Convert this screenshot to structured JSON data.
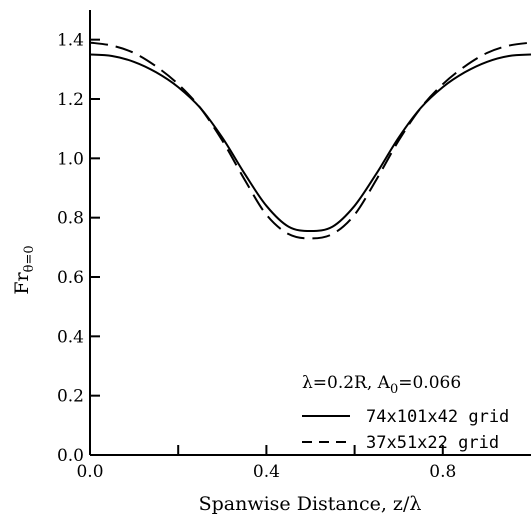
{
  "chart_data": {
    "type": "line",
    "xlabel": "Spanwise Distance, z/λ",
    "ylabel_main": "Fr",
    "ylabel_sub": "θ=0",
    "xlim": [
      0.0,
      1.0
    ],
    "ylim": [
      0.0,
      1.5
    ],
    "x_ticks": [
      0.0,
      0.4,
      0.8
    ],
    "x_tick_labels": [
      "0.0",
      "0.4",
      "0.8"
    ],
    "x_minor_ticks": [
      0.2,
      0.6
    ],
    "y_ticks": [
      0.0,
      0.2,
      0.4,
      0.6,
      0.8,
      1.0,
      1.2,
      1.4
    ],
    "y_tick_labels": [
      "0.0",
      "0.2",
      "0.4",
      "0.6",
      "0.8",
      "1.0",
      "1.2",
      "1.4"
    ],
    "annotation_main": "λ=0.2R, A",
    "annotation_sub": "0",
    "annotation_tail": "=0.066",
    "grid": false,
    "legend_position": "lower-right",
    "series": [
      {
        "name": "74x101x42 grid",
        "style": "solid",
        "x": [
          0.0,
          0.05,
          0.1,
          0.15,
          0.2,
          0.25,
          0.3,
          0.35,
          0.4,
          0.45,
          0.5,
          0.55,
          0.6,
          0.65,
          0.7,
          0.75,
          0.8,
          0.85,
          0.9,
          0.95,
          1.0
        ],
        "y": [
          1.35,
          1.345,
          1.325,
          1.29,
          1.24,
          1.17,
          1.07,
          0.95,
          0.84,
          0.77,
          0.755,
          0.77,
          0.84,
          0.95,
          1.07,
          1.17,
          1.24,
          1.29,
          1.325,
          1.345,
          1.35
        ]
      },
      {
        "name": "37x51x22 grid",
        "style": "dashed",
        "x": [
          0.0,
          0.05,
          0.1,
          0.15,
          0.2,
          0.25,
          0.3,
          0.35,
          0.4,
          0.45,
          0.5,
          0.55,
          0.6,
          0.65,
          0.7,
          0.75,
          0.8,
          0.85,
          0.9,
          0.95,
          1.0
        ],
        "y": [
          1.39,
          1.38,
          1.355,
          1.31,
          1.25,
          1.17,
          1.06,
          0.93,
          0.81,
          0.745,
          0.73,
          0.745,
          0.81,
          0.93,
          1.06,
          1.17,
          1.25,
          1.31,
          1.355,
          1.38,
          1.39
        ]
      }
    ]
  }
}
